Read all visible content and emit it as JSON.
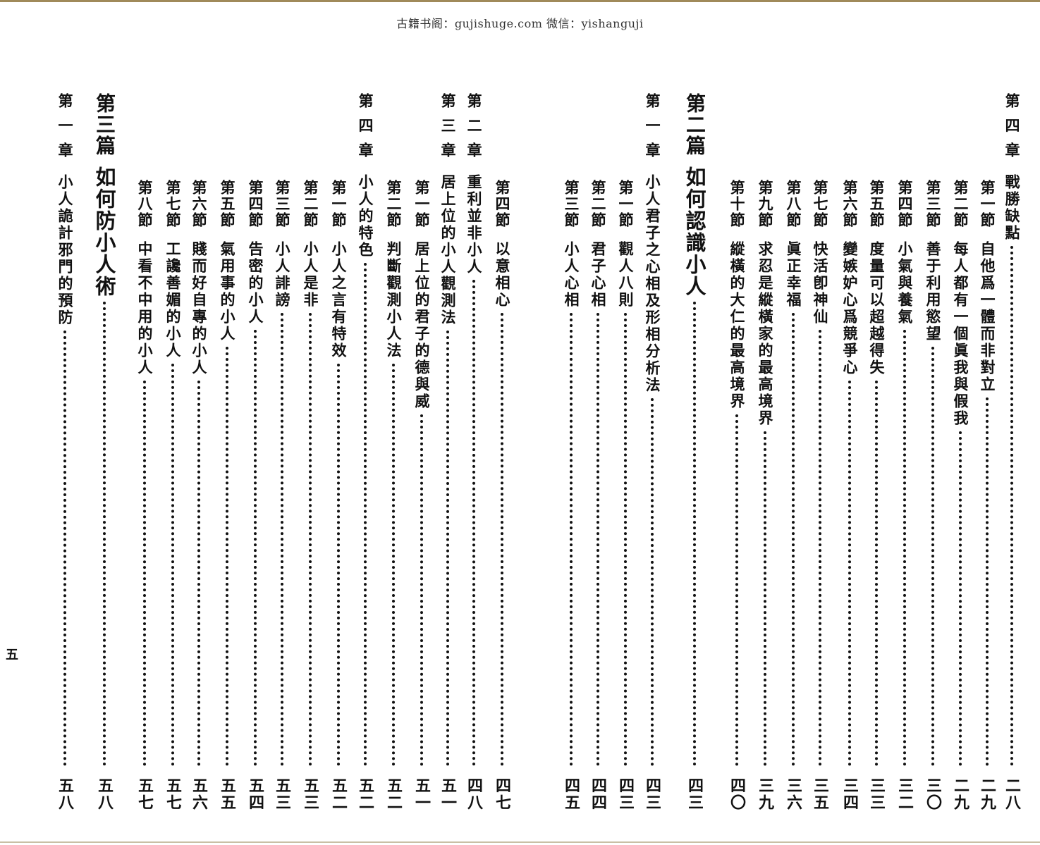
{
  "header": {
    "watermark": "古籍书阁：gujishuge.com 微信：yishanguji"
  },
  "contents": [
    {
      "label": "第四章",
      "title": "戰勝缺點",
      "page": "二八"
    },
    {
      "label": "第一節",
      "title": "自他爲一體而非對立",
      "page": "二九"
    },
    {
      "label": "第二節",
      "title": "每人都有一個眞我與假我",
      "page": "二九"
    },
    {
      "label": "第三節",
      "title": "善于利用慾望",
      "page": "三〇"
    },
    {
      "label": "第四節",
      "title": "小氣與養氣",
      "page": "三二"
    },
    {
      "label": "第五節",
      "title": "度量可以超越得失",
      "page": "三三"
    },
    {
      "label": "第六節",
      "title": "變嫉妒心爲競爭心",
      "page": "三四"
    },
    {
      "label": "第七節",
      "title": "快活卽神仙",
      "page": "三五"
    },
    {
      "label": "第八節",
      "title": "眞正幸福",
      "page": "三六"
    },
    {
      "label": "第九節",
      "title": "求忍是縱橫家的最高境界",
      "page": "三九"
    },
    {
      "label": "第十節",
      "title": "縱橫的大仁的最高境界",
      "page": "四〇"
    },
    {
      "label": "第二篇",
      "title": "如何認識小人",
      "page": "四三"
    },
    {
      "label": "第一章",
      "title": "小人君子之心相及形相分析法",
      "page": "四三"
    },
    {
      "label": "第一節",
      "title": "觀人八則",
      "page": "四三"
    },
    {
      "label": "第二節",
      "title": "君子心相",
      "page": "四四"
    },
    {
      "label": "第三節",
      "title": "小人心相",
      "page": "四五"
    },
    {
      "label": "第四節",
      "title": "以意相心",
      "page": "四七"
    },
    {
      "label": "第二章",
      "title": "重利並非小人",
      "page": "四八"
    },
    {
      "label": "第三章",
      "title": "居上位的小人觀測法",
      "page": "五一"
    },
    {
      "label": "第一節",
      "title": "居上位的君子的德與威",
      "page": "五一"
    },
    {
      "label": "第二節",
      "title": "判斷觀測小人法",
      "page": "五二"
    },
    {
      "label": "第四章",
      "title": "小人的特色",
      "page": "五二"
    },
    {
      "label": "第一節",
      "title": "小人之言有特效",
      "page": "五二"
    },
    {
      "label": "第二節",
      "title": "小人是非",
      "page": "五三"
    },
    {
      "label": "第三節",
      "title": "小人誹謗",
      "page": "五三"
    },
    {
      "label": "第四節",
      "title": "告密的小人",
      "page": "五四"
    },
    {
      "label": "第五節",
      "title": "氣用事的小人",
      "page": "五五"
    },
    {
      "label": "第六節",
      "title": "賤而好自專的小人",
      "page": "五六"
    },
    {
      "label": "第七節",
      "title": "工讒善媚的小人",
      "page": "五七"
    },
    {
      "label": "第八節",
      "title": "中看不中用的小人",
      "page": "五七"
    },
    {
      "label": "第三篇",
      "title": "如何防小人術",
      "page": "五八"
    },
    {
      "label": "第一章",
      "title": "小人詭計邪門的預防",
      "page": "五八"
    }
  ],
  "folio": "五"
}
